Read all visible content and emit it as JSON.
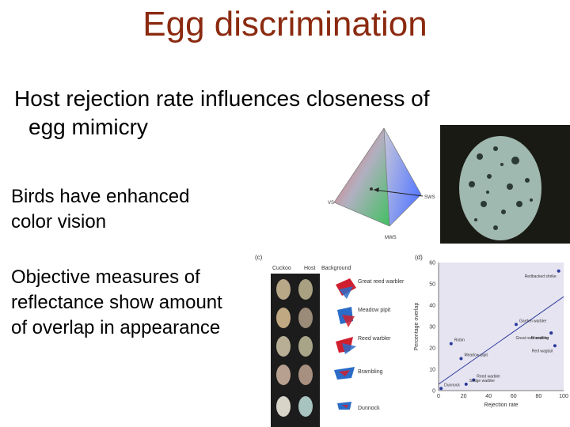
{
  "slide": {
    "title": "Egg discrimination",
    "bullet_mark": "",
    "bullet_line1": "Host rejection rate influences closeness of",
    "bullet_line2": "egg mimicry",
    "sub1_line1": "Birds have enhanced",
    "sub1_line2": "color vision",
    "sub2_line1": "Objective measures of",
    "sub2_line2": "reflectance show amount",
    "sub2_line3": "of overlap in appearance"
  },
  "figure_tetra": {
    "label_sws": "SWS",
    "label_mws": "MWS",
    "label_vs": "VS"
  },
  "figure_c": {
    "panel_label": "(c)",
    "col_cuckoo": "Cuckoo",
    "col_host": "Host",
    "col_background": "Background",
    "hosts": [
      "Great reed warbler",
      "Meadow pipit",
      "Reed warbler",
      "Brambling",
      "Dunnock"
    ]
  },
  "chart_data": {
    "type": "scatter",
    "panel_label": "(d)",
    "xlabel": "Rejection rate",
    "ylabel": "Percentage overlap",
    "xlim": [
      0,
      100
    ],
    "ylim": [
      0,
      60
    ],
    "xticks": [
      0,
      20,
      40,
      60,
      80,
      100
    ],
    "yticks": [
      0,
      10,
      20,
      30,
      40,
      50,
      60
    ],
    "points": [
      {
        "label": "Robin",
        "x": 10,
        "y": 22
      },
      {
        "label": "Meadow pipit",
        "x": 18,
        "y": 15
      },
      {
        "label": "Garden warbler",
        "x": 62,
        "y": 31
      },
      {
        "label": "Brambling",
        "x": 90,
        "y": 27
      },
      {
        "label": "Great reed warbler",
        "x": 90,
        "y": 27
      },
      {
        "label": "Red wagtail",
        "x": 93,
        "y": 21
      },
      {
        "label": "Redbacked shrike",
        "x": 96,
        "y": 56
      },
      {
        "label": "Reed warbler",
        "x": 28,
        "y": 5
      },
      {
        "label": "Dunnock",
        "x": 2,
        "y": 1
      },
      {
        "label": "Sedge warbler",
        "x": 22,
        "y": 3
      }
    ],
    "trend": [
      [
        0,
        3
      ],
      [
        100,
        44
      ]
    ],
    "colors": {
      "point": "#2a3a9c",
      "line": "#2a3a9c",
      "background": "#e6e4f1"
    }
  }
}
